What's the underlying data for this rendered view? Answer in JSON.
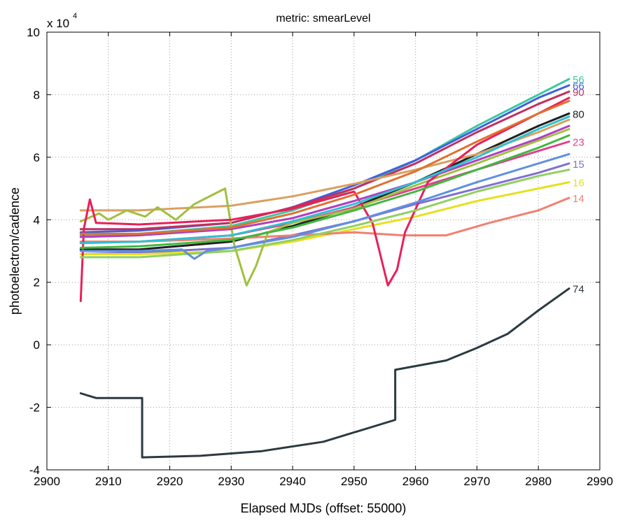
{
  "chart_data": {
    "type": "line",
    "title": "metric: smearLevel",
    "xlabel": "Elapsed MJDs (offset: 55000)",
    "ylabel": "photoelectron/cadence",
    "y_exponent_label": "x 10",
    "y_exponent_power": "4",
    "xlim": [
      2900,
      2990
    ],
    "ylim": [
      -4,
      10
    ],
    "grid": true,
    "x_ticks": [
      "2900",
      "2910",
      "2920",
      "2930",
      "2940",
      "2950",
      "2960",
      "2970",
      "2980",
      "2990"
    ],
    "y_ticks": [
      "-4",
      "-2",
      "0",
      "2",
      "4",
      "6",
      "8",
      "10"
    ],
    "series": [
      {
        "name": "56",
        "color": "#3cc8a0",
        "points": [
          [
            2905.5,
            3.5
          ],
          [
            2915,
            3.55
          ],
          [
            2930,
            3.8
          ],
          [
            2940,
            4.3
          ],
          [
            2950,
            5.0
          ],
          [
            2960,
            5.9
          ],
          [
            2970,
            7.0
          ],
          [
            2980,
            8.0
          ],
          [
            2985,
            8.5
          ]
        ]
      },
      {
        "name": "66",
        "color": "#4060e0",
        "points": [
          [
            2905.5,
            3.6
          ],
          [
            2915,
            3.65
          ],
          [
            2930,
            3.9
          ],
          [
            2940,
            4.4
          ],
          [
            2950,
            5.1
          ],
          [
            2960,
            5.9
          ],
          [
            2970,
            6.9
          ],
          [
            2980,
            7.9
          ],
          [
            2985,
            8.3
          ]
        ]
      },
      {
        "name": "90",
        "color": "#c03060",
        "points": [
          [
            2905.5,
            3.7
          ],
          [
            2915,
            3.7
          ],
          [
            2930,
            3.9
          ],
          [
            2940,
            4.4
          ],
          [
            2950,
            5.0
          ],
          [
            2960,
            5.8
          ],
          [
            2970,
            6.8
          ],
          [
            2980,
            7.7
          ],
          [
            2985,
            8.1
          ]
        ]
      },
      {
        "name": "80",
        "color": "#202020",
        "points": [
          [
            2905.5,
            3.05
          ],
          [
            2915,
            3.05
          ],
          [
            2930,
            3.3
          ],
          [
            2940,
            3.8
          ],
          [
            2950,
            4.4
          ],
          [
            2960,
            5.2
          ],
          [
            2970,
            6.1
          ],
          [
            2980,
            7.0
          ],
          [
            2985,
            7.4
          ]
        ]
      },
      {
        "name": "23",
        "color": "#e04090",
        "points": [
          [
            2905.5,
            3.3
          ],
          [
            2915,
            3.3
          ],
          [
            2930,
            3.5
          ],
          [
            2940,
            3.9
          ],
          [
            2950,
            4.4
          ],
          [
            2960,
            5.0
          ],
          [
            2970,
            5.6
          ],
          [
            2980,
            6.2
          ],
          [
            2985,
            6.5
          ]
        ]
      },
      {
        "name": "15",
        "color": "#8070d0",
        "points": [
          [
            2905.5,
            2.9
          ],
          [
            2915,
            2.95
          ],
          [
            2930,
            3.1
          ],
          [
            2940,
            3.5
          ],
          [
            2950,
            3.95
          ],
          [
            2960,
            4.5
          ],
          [
            2970,
            5.0
          ],
          [
            2980,
            5.5
          ],
          [
            2985,
            5.8
          ]
        ]
      },
      {
        "name": "16",
        "color": "#e6e020",
        "points": [
          [
            2905.5,
            2.9
          ],
          [
            2915,
            2.9
          ],
          [
            2930,
            3.0
          ],
          [
            2940,
            3.3
          ],
          [
            2950,
            3.7
          ],
          [
            2960,
            4.1
          ],
          [
            2970,
            4.6
          ],
          [
            2980,
            5.0
          ],
          [
            2985,
            5.2
          ]
        ]
      },
      {
        "name": "14",
        "color": "#f08070",
        "points": [
          [
            2905.5,
            3.3
          ],
          [
            2915,
            3.3
          ],
          [
            2930,
            3.4
          ],
          [
            2940,
            3.5
          ],
          [
            2950,
            3.6
          ],
          [
            2958,
            3.5
          ],
          [
            2965,
            3.5
          ],
          [
            2972,
            3.9
          ],
          [
            2980,
            4.3
          ],
          [
            2985,
            4.7
          ]
        ]
      },
      {
        "name": "74",
        "color": "#2b3a42",
        "points": [
          [
            2905.5,
            -1.55
          ],
          [
            2908,
            -1.7
          ],
          [
            2915.5,
            -1.7
          ],
          [
            2915.5,
            -3.6
          ],
          [
            2925,
            -3.55
          ],
          [
            2935,
            -3.4
          ],
          [
            2945,
            -3.1
          ],
          [
            2956.7,
            -2.4
          ],
          [
            2956.7,
            -0.8
          ],
          [
            2965,
            -0.5
          ],
          [
            2970,
            -0.1
          ],
          [
            2975,
            0.35
          ],
          [
            2980,
            1.1
          ],
          [
            2985,
            1.8
          ]
        ]
      },
      {
        "name": "",
        "color": "#d9a060",
        "points": [
          [
            2905.5,
            4.3
          ],
          [
            2915,
            4.3
          ],
          [
            2930,
            4.45
          ],
          [
            2940,
            4.75
          ],
          [
            2950,
            5.15
          ],
          [
            2960,
            5.6
          ],
          [
            2970,
            6.1
          ],
          [
            2980,
            6.8
          ],
          [
            2985,
            7.2
          ]
        ]
      },
      {
        "name": "",
        "color": "#a0c040",
        "points": [
          [
            2905.5,
            3.95
          ],
          [
            2908.5,
            4.2
          ],
          [
            2910,
            4.0
          ],
          [
            2913,
            4.3
          ],
          [
            2916,
            4.1
          ],
          [
            2918,
            4.4
          ],
          [
            2921,
            4.0
          ],
          [
            2924,
            4.5
          ],
          [
            2927,
            4.8
          ],
          [
            2929,
            5.0
          ],
          [
            2930.5,
            3.2
          ],
          [
            2932.5,
            1.9
          ],
          [
            2934,
            2.5
          ],
          [
            2936,
            3.6
          ],
          [
            2940,
            3.9
          ],
          [
            2950,
            4.35
          ],
          [
            2960,
            5.1
          ],
          [
            2970,
            5.8
          ],
          [
            2985,
            6.9
          ]
        ]
      },
      {
        "name": "",
        "color": "#e8205a",
        "points": [
          [
            2905.5,
            1.4
          ],
          [
            2906,
            3.7
          ],
          [
            2907,
            4.65
          ],
          [
            2908,
            3.9
          ],
          [
            2915,
            3.85
          ],
          [
            2930,
            4.0
          ],
          [
            2940,
            4.35
          ],
          [
            2950,
            4.9
          ],
          [
            2953,
            3.9
          ],
          [
            2955.5,
            1.9
          ],
          [
            2957,
            2.4
          ],
          [
            2958.3,
            3.6
          ],
          [
            2962,
            5.2
          ],
          [
            2970,
            6.4
          ],
          [
            2985,
            7.9
          ]
        ]
      },
      {
        "name": "",
        "color": "#90d060",
        "points": [
          [
            2905.5,
            2.8
          ],
          [
            2915,
            2.8
          ],
          [
            2930,
            3.0
          ],
          [
            2940,
            3.35
          ],
          [
            2950,
            3.8
          ],
          [
            2960,
            4.3
          ],
          [
            2970,
            4.9
          ],
          [
            2980,
            5.4
          ],
          [
            2985,
            5.6
          ]
        ]
      },
      {
        "name": "",
        "color": "#40b840",
        "points": [
          [
            2905.5,
            3.1
          ],
          [
            2915,
            3.15
          ],
          [
            2930,
            3.35
          ],
          [
            2940,
            3.75
          ],
          [
            2950,
            4.3
          ],
          [
            2960,
            4.9
          ],
          [
            2970,
            5.6
          ],
          [
            2980,
            6.3
          ],
          [
            2985,
            6.7
          ]
        ]
      },
      {
        "name": "",
        "color": "#b040c0",
        "points": [
          [
            2905.5,
            3.45
          ],
          [
            2915,
            3.5
          ],
          [
            2930,
            3.7
          ],
          [
            2940,
            4.05
          ],
          [
            2950,
            4.6
          ],
          [
            2960,
            5.2
          ],
          [
            2970,
            5.9
          ],
          [
            2980,
            6.6
          ],
          [
            2985,
            7.0
          ]
        ]
      },
      {
        "name": "",
        "color": "#30c0d0",
        "points": [
          [
            2905.5,
            3.25
          ],
          [
            2915,
            3.3
          ],
          [
            2930,
            3.5
          ],
          [
            2940,
            3.95
          ],
          [
            2950,
            4.5
          ],
          [
            2960,
            5.2
          ],
          [
            2970,
            6.0
          ],
          [
            2980,
            6.9
          ],
          [
            2985,
            7.3
          ]
        ]
      },
      {
        "name": "",
        "color": "#e07030",
        "points": [
          [
            2905.5,
            3.55
          ],
          [
            2915,
            3.55
          ],
          [
            2930,
            3.75
          ],
          [
            2940,
            4.2
          ],
          [
            2950,
            4.8
          ],
          [
            2960,
            5.55
          ],
          [
            2970,
            6.5
          ],
          [
            2980,
            7.4
          ],
          [
            2985,
            7.8
          ]
        ]
      },
      {
        "name": "",
        "color": "#6090e0",
        "points": [
          [
            2905.5,
            3.0
          ],
          [
            2915,
            3.0
          ],
          [
            2922,
            3.05
          ],
          [
            2924,
            2.75
          ],
          [
            2926,
            3.0
          ],
          [
            2930,
            3.1
          ],
          [
            2940,
            3.45
          ],
          [
            2950,
            3.95
          ],
          [
            2960,
            4.55
          ],
          [
            2970,
            5.2
          ],
          [
            2980,
            5.8
          ],
          [
            2985,
            6.1
          ]
        ]
      }
    ]
  }
}
